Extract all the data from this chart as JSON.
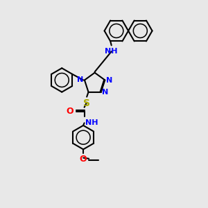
{
  "bg_color": "#e8e8e8",
  "black": "#000000",
  "blue": "#0000ff",
  "yellow": "#aaaa00",
  "red": "#ff0000",
  "lw": 1.5,
  "fs": 8,
  "fig_size": [
    3.0,
    3.0
  ],
  "dpi": 100,
  "xlim": [
    0,
    10
  ],
  "ylim": [
    0,
    10
  ]
}
